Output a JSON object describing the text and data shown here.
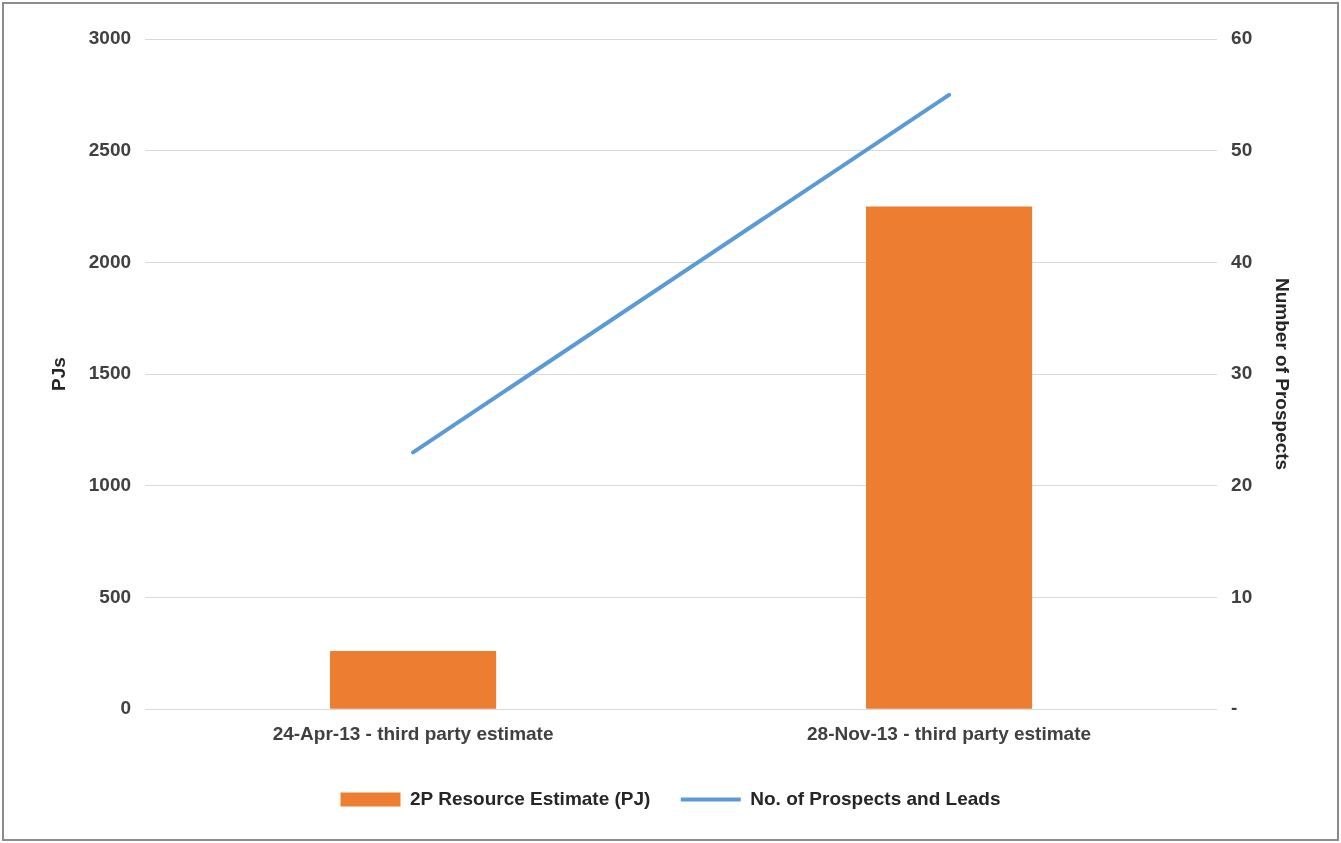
{
  "chart_data": {
    "type": "bar",
    "categories": [
      "24-Apr-13 - third party estimate",
      "28-Nov-13 - third party estimate"
    ],
    "series": [
      {
        "name": "2P Resource Estimate (PJ)",
        "color": "#ed7d31",
        "values": [
          260,
          2250
        ]
      },
      {
        "name": "No. of Prospects and Leads",
        "type": "line",
        "axis": "y2",
        "color": "#5b9bd5",
        "values": [
          23,
          55
        ]
      }
    ],
    "ylabel": "PJs",
    "y2label": "Number of Prospects",
    "ylim": [
      0,
      3000
    ],
    "yticks": [
      0,
      500,
      1000,
      1500,
      2000,
      2500,
      3000
    ],
    "y2lim": [
      0,
      60
    ],
    "y2ticks": [
      {
        "value": 0,
        "label": "-"
      },
      10,
      20,
      30,
      40,
      50,
      60
    ],
    "grid": "y",
    "legend": "bottom",
    "marker": "none",
    "line_style": "solid"
  }
}
